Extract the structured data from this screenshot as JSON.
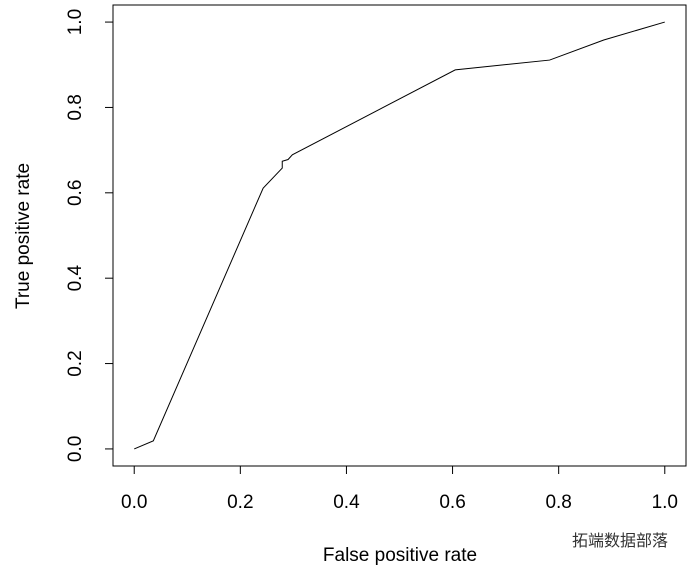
{
  "chart_data": {
    "type": "line",
    "x_label": "False positive rate",
    "y_label": "True positive rate",
    "annotation": "拓端数据部落",
    "x": [
      0,
      0.036,
      0.243,
      0.279,
      0.279,
      0.29,
      0.298,
      0.605,
      0.783,
      0.885,
      1.0
    ],
    "series": [
      {
        "color": "#000000",
        "values": [
          0,
          0.019,
          0.611,
          0.658,
          0.674,
          0.678,
          0.689,
          0.888,
          0.911,
          0.958,
          1.0
        ]
      }
    ],
    "xlim": [
      -0.04,
      1.04
    ],
    "ylim": [
      -0.04,
      1.04
    ],
    "xticks": [
      {
        "value": 0,
        "label": "0.0"
      },
      {
        "value": 0.2,
        "label": "0.2"
      },
      {
        "value": 0.4,
        "label": "0.4"
      },
      {
        "value": 0.6,
        "label": "0.6"
      },
      {
        "value": 0.8,
        "label": "0.8"
      },
      {
        "value": 1,
        "label": "1.0"
      }
    ],
    "yticks": [
      {
        "value": 0,
        "label": "0.0"
      },
      {
        "value": 0.2,
        "label": "0.2"
      },
      {
        "value": 0.4,
        "label": "0.4"
      },
      {
        "value": 0.6,
        "label": "0.6"
      },
      {
        "value": 0.8,
        "label": "0.8"
      },
      {
        "value": 1,
        "label": "1.0"
      }
    ]
  }
}
